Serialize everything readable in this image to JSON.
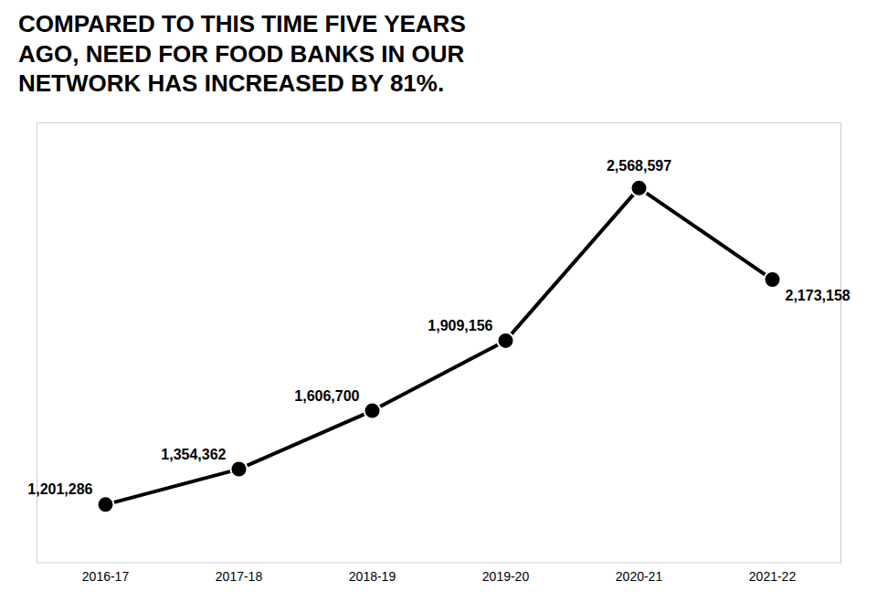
{
  "chart_data": {
    "type": "line",
    "title": "COMPARED TO THIS TIME FIVE YEARS AGO, NEED FOR FOOD BANKS IN OUR NETWORK HAS INCREASED BY 81%.",
    "categories": [
      "2016-17",
      "2017-18",
      "2018-19",
      "2019-20",
      "2020-21",
      "2021-22"
    ],
    "values": [
      1201286,
      1354362,
      1606700,
      1909156,
      2568597,
      2173158
    ],
    "value_labels": [
      "1,201,286",
      "1,354,362",
      "1,606,700",
      "1,909,156",
      "2,568,597",
      "2,173,158"
    ],
    "data_labels": true,
    "ylim": [
      950000,
      2850000
    ],
    "yticks": [],
    "tick_labels": "x",
    "grid": false,
    "marker": "circle"
  }
}
